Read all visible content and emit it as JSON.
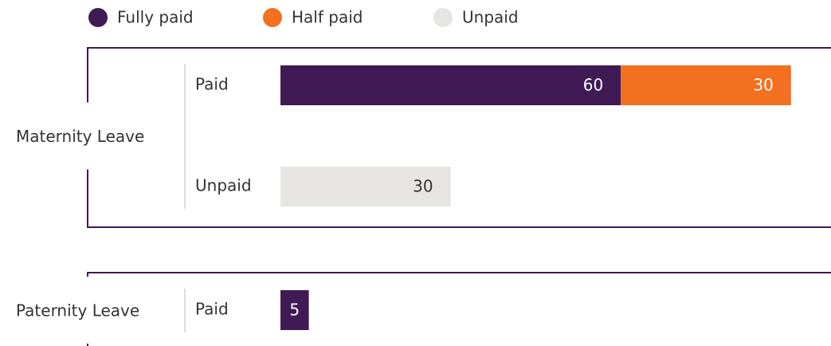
{
  "chart_data": {
    "type": "grouped-stacked-bar",
    "series": [
      {
        "name": "Fully paid",
        "color": "#3f1a54",
        "values": [
          60,
          null,
          5
        ]
      },
      {
        "name": "Half paid",
        "color": "#f37021",
        "values": [
          30,
          null,
          null
        ]
      },
      {
        "name": "Unpaid",
        "color": "#e6e5e3",
        "values": [
          null,
          30,
          null
        ]
      }
    ],
    "groups": [
      {
        "name": "Maternity Leave",
        "categories": [
          "Paid",
          "Unpaid"
        ]
      },
      {
        "name": "Paternity Leave",
        "categories": [
          "Paid"
        ]
      }
    ]
  }
}
